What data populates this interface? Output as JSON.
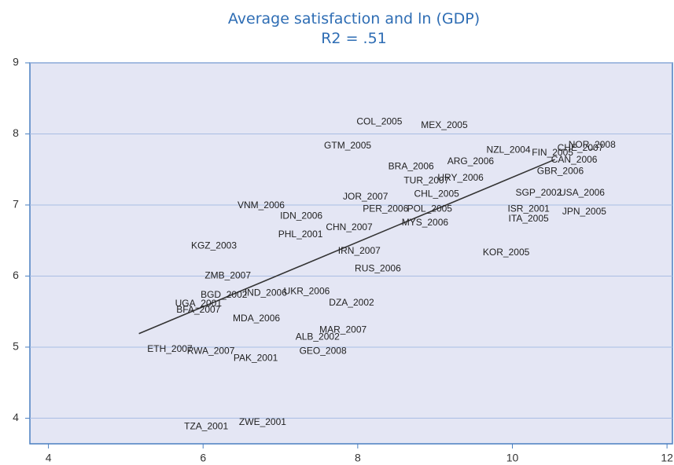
{
  "chart_data": {
    "type": "scatter",
    "title": "Average satisfaction and ln (GDP)",
    "subtitle": "R2 = .51",
    "labels": [
      "COL_2005",
      "MEX_2005",
      "GTM_2005",
      "NZL_2004",
      "FIN_2005",
      "CHE_2007",
      "NOR_2008",
      "CAN_2006",
      "BRA_2006",
      "ARG_2006",
      "GBR_2006",
      "TUR_2007",
      "URY_2006",
      "JOR_2007",
      "CHL_2005",
      "SGP_2002",
      "USA_2006",
      "VNM_2006",
      "IDN_2006",
      "PER_2006",
      "POL_2005",
      "ISR_2001",
      "JPN_2005",
      "ITA_2005",
      "MYS_2006",
      "CHN_2007",
      "PHL_2001",
      "KGZ_2003",
      "IRN_2007",
      "KOR_2005",
      "ZMB_2007",
      "RUS_2006",
      "BGD_2002",
      "IND_2006",
      "UKR_2006",
      "DZA_2002",
      "UGA_2001",
      "BFA_2007",
      "MDA_2006",
      "MAR_2007",
      "ALB_2002",
      "GEO_2008",
      "ETH_2007",
      "RWA_2007",
      "PAK_2001",
      "TZA_2001",
      "ZWE_2001"
    ],
    "x": [
      8.28,
      9.12,
      7.87,
      9.95,
      10.52,
      10.88,
      11.03,
      10.8,
      8.69,
      9.46,
      10.62,
      8.89,
      9.33,
      8.1,
      9.02,
      10.34,
      10.9,
      6.75,
      7.27,
      8.36,
      8.93,
      10.21,
      10.93,
      10.21,
      8.87,
      7.89,
      7.26,
      6.14,
      8.02,
      9.92,
      6.32,
      8.26,
      6.27,
      6.81,
      7.34,
      7.92,
      5.94,
      5.94,
      6.69,
      7.81,
      7.48,
      7.55,
      5.57,
      6.1,
      6.68,
      6.04,
      6.77
    ],
    "y": [
      8.17,
      8.12,
      7.83,
      7.77,
      7.73,
      7.8,
      7.84,
      7.63,
      7.54,
      7.61,
      7.47,
      7.34,
      7.38,
      7.11,
      7.15,
      7.17,
      7.17,
      6.99,
      6.84,
      6.94,
      6.94,
      6.94,
      6.9,
      6.8,
      6.75,
      6.68,
      6.58,
      6.42,
      6.35,
      6.33,
      6.0,
      6.1,
      5.73,
      5.76,
      5.78,
      5.62,
      5.61,
      5.52,
      5.4,
      5.24,
      5.14,
      4.94,
      4.97,
      4.94,
      4.84,
      3.88,
      3.94
    ],
    "fit_line": {
      "x": [
        5.17,
        10.55
      ],
      "y": [
        5.19,
        7.64
      ]
    },
    "xlim": [
      3.76,
      12.07
    ],
    "ylim": [
      3.64,
      9
    ],
    "xticks": [
      4,
      6,
      8,
      10,
      12
    ],
    "yticks": [
      4,
      5,
      6,
      7,
      8,
      9
    ],
    "grid": true
  }
}
